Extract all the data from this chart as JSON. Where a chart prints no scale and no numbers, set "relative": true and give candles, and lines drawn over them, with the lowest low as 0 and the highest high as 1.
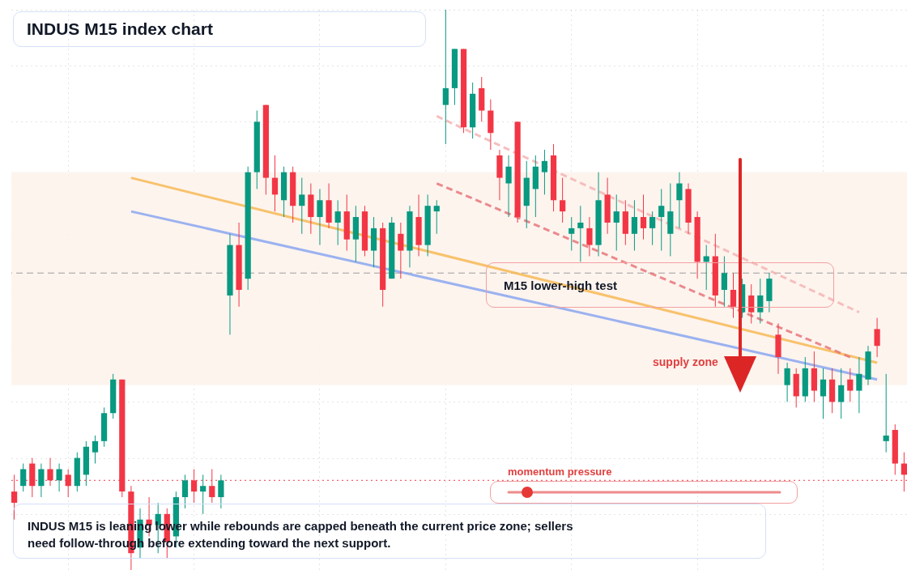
{
  "chart_data": {
    "type": "candlestick",
    "title": "INDUS M15 index chart",
    "relative": true,
    "grid": true,
    "categories": [
      null,
      null,
      null,
      null,
      null,
      null,
      null,
      null,
      null,
      null,
      null,
      null,
      null,
      null,
      null,
      null,
      null,
      null,
      null,
      null,
      null,
      null,
      null,
      null,
      null,
      null,
      null,
      null,
      null,
      null,
      null,
      null,
      null,
      null,
      null,
      null,
      null,
      null,
      null,
      null,
      null,
      null,
      null,
      null,
      null,
      null,
      null,
      null,
      null,
      null,
      null,
      null,
      null,
      null,
      null,
      null,
      null,
      null,
      null,
      null,
      null,
      null,
      null,
      null,
      null,
      null,
      null,
      null,
      null,
      null,
      null,
      null,
      null,
      null,
      null,
      null,
      null,
      null,
      null,
      null,
      null,
      null,
      null,
      null,
      null,
      null,
      null,
      null,
      null,
      null,
      null,
      null,
      null,
      null,
      null,
      null,
      null,
      null,
      null,
      null
    ],
    "ohlc": [
      [
        0.14,
        0.17,
        0.09,
        0.12
      ],
      [
        0.15,
        0.19,
        0.14,
        0.18
      ],
      [
        0.19,
        0.2,
        0.13,
        0.15
      ],
      [
        0.15,
        0.19,
        0.13,
        0.18
      ],
      [
        0.18,
        0.2,
        0.15,
        0.16
      ],
      [
        0.16,
        0.19,
        0.14,
        0.18
      ],
      [
        0.17,
        0.18,
        0.13,
        0.15
      ],
      [
        0.15,
        0.21,
        0.14,
        0.2
      ],
      [
        0.17,
        0.23,
        0.15,
        0.22
      ],
      [
        0.21,
        0.24,
        0.19,
        0.23
      ],
      [
        0.23,
        0.29,
        0.22,
        0.28
      ],
      [
        0.28,
        0.35,
        0.27,
        0.34
      ],
      [
        0.34,
        0.34,
        0.13,
        0.14
      ],
      [
        0.14,
        0.15,
        0.0,
        0.03
      ],
      [
        0.04,
        0.11,
        0.02,
        0.09
      ],
      [
        0.09,
        0.13,
        0.06,
        0.08
      ],
      [
        0.08,
        0.12,
        0.03,
        0.1
      ],
      [
        0.1,
        0.11,
        0.02,
        0.05
      ],
      [
        0.06,
        0.14,
        0.04,
        0.13
      ],
      [
        0.13,
        0.17,
        0.11,
        0.16
      ],
      [
        0.16,
        0.18,
        0.12,
        0.14
      ],
      [
        0.14,
        0.17,
        0.1,
        0.15
      ],
      [
        0.15,
        0.18,
        0.12,
        0.13
      ],
      [
        0.13,
        0.17,
        0.11,
        0.16
      ],
      [
        0.49,
        0.6,
        0.42,
        0.58
      ],
      [
        0.58,
        0.62,
        0.47,
        0.5
      ],
      [
        0.52,
        0.72,
        0.5,
        0.71
      ],
      [
        0.71,
        0.82,
        0.68,
        0.8
      ],
      [
        0.83,
        0.83,
        0.67,
        0.7
      ],
      [
        0.7,
        0.74,
        0.64,
        0.67
      ],
      [
        0.66,
        0.72,
        0.63,
        0.71
      ],
      [
        0.71,
        0.72,
        0.62,
        0.65
      ],
      [
        0.65,
        0.7,
        0.6,
        0.67
      ],
      [
        0.67,
        0.69,
        0.6,
        0.63
      ],
      [
        0.63,
        0.68,
        0.58,
        0.66
      ],
      [
        0.66,
        0.69,
        0.61,
        0.62
      ],
      [
        0.62,
        0.66,
        0.58,
        0.64
      ],
      [
        0.64,
        0.67,
        0.57,
        0.59
      ],
      [
        0.59,
        0.65,
        0.55,
        0.63
      ],
      [
        0.64,
        0.65,
        0.56,
        0.57
      ],
      [
        0.57,
        0.63,
        0.54,
        0.61
      ],
      [
        0.61,
        0.62,
        0.47,
        0.5
      ],
      [
        0.52,
        0.63,
        0.52,
        0.62
      ],
      [
        0.6,
        0.62,
        0.52,
        0.57
      ],
      [
        0.57,
        0.65,
        0.54,
        0.64
      ],
      [
        0.63,
        0.67,
        0.56,
        0.58
      ],
      [
        0.58,
        0.67,
        0.56,
        0.65
      ],
      [
        0.64,
        0.66,
        0.6,
        0.65
      ],
      [
        0.83,
        1.0,
        0.76,
        0.86
      ],
      [
        0.86,
        0.93,
        0.83,
        0.93
      ],
      [
        0.93,
        0.93,
        0.78,
        0.79
      ],
      [
        0.79,
        0.87,
        0.77,
        0.85
      ],
      [
        0.86,
        0.88,
        0.8,
        0.82
      ],
      [
        0.82,
        0.84,
        0.75,
        0.78
      ],
      [
        0.74,
        0.75,
        0.66,
        0.7
      ],
      [
        0.69,
        0.74,
        0.63,
        0.72
      ],
      [
        0.8,
        0.8,
        0.62,
        0.63
      ],
      [
        0.65,
        0.73,
        0.61,
        0.7
      ],
      [
        0.68,
        0.74,
        0.63,
        0.72
      ],
      [
        0.71,
        0.75,
        0.67,
        0.73
      ],
      [
        0.74,
        0.76,
        0.64,
        0.66
      ],
      [
        0.66,
        0.7,
        0.62,
        0.64
      ],
      [
        0.6,
        0.63,
        0.57,
        0.61
      ],
      [
        0.61,
        0.65,
        0.55,
        0.62
      ],
      [
        0.61,
        0.63,
        0.56,
        0.58
      ],
      [
        0.58,
        0.71,
        0.56,
        0.66
      ],
      [
        0.67,
        0.7,
        0.6,
        0.62
      ],
      [
        0.62,
        0.67,
        0.57,
        0.64
      ],
      [
        0.64,
        0.66,
        0.58,
        0.6
      ],
      [
        0.6,
        0.66,
        0.57,
        0.63
      ],
      [
        0.63,
        0.67,
        0.59,
        0.61
      ],
      [
        0.61,
        0.64,
        0.58,
        0.63
      ],
      [
        0.63,
        0.68,
        0.57,
        0.65
      ],
      [
        0.6,
        0.69,
        0.56,
        0.64
      ],
      [
        0.66,
        0.71,
        0.61,
        0.69
      ],
      [
        0.68,
        0.69,
        0.6,
        0.62
      ],
      [
        0.63,
        0.64,
        0.52,
        0.55
      ],
      [
        0.55,
        0.58,
        0.5,
        0.56
      ],
      [
        0.56,
        0.6,
        0.47,
        0.49
      ],
      [
        0.5,
        0.56,
        0.47,
        0.53
      ],
      [
        0.5,
        0.53,
        0.45,
        0.47
      ],
      [
        0.46,
        0.52,
        0.45,
        0.51
      ],
      [
        0.49,
        0.51,
        0.44,
        0.46
      ],
      [
        0.46,
        0.52,
        0.44,
        0.49
      ],
      [
        0.48,
        0.53,
        0.46,
        0.52
      ],
      [
        0.42,
        0.44,
        0.35,
        0.38
      ],
      [
        0.33,
        0.37,
        0.3,
        0.36
      ],
      [
        0.35,
        0.36,
        0.29,
        0.31
      ],
      [
        0.31,
        0.38,
        0.3,
        0.36
      ],
      [
        0.36,
        0.39,
        0.3,
        0.32
      ],
      [
        0.31,
        0.36,
        0.27,
        0.34
      ],
      [
        0.34,
        0.36,
        0.28,
        0.3
      ],
      [
        0.3,
        0.36,
        0.27,
        0.33
      ],
      [
        0.34,
        0.36,
        0.3,
        0.32
      ],
      [
        0.32,
        0.38,
        0.28,
        0.35
      ],
      [
        0.34,
        0.4,
        0.33,
        0.39
      ],
      [
        0.43,
        0.45,
        0.38,
        0.4
      ],
      [
        0.23,
        0.35,
        0.21,
        0.24
      ],
      [
        0.25,
        0.26,
        0.17,
        0.19
      ],
      [
        0.19,
        0.21,
        0.14,
        0.17
      ]
    ],
    "colors": [
      "#f23645",
      "#089981",
      "#f23645",
      "#089981",
      "#f23645",
      "#089981",
      "#f23645",
      "#089981",
      "#089981",
      "#089981",
      "#089981",
      "#089981",
      "#f23645",
      "#f23645",
      "#089981",
      "#f23645",
      "#089981",
      "#f23645",
      "#089981",
      "#089981",
      "#f23645",
      "#089981",
      "#f23645",
      "#089981",
      "#089981",
      "#f23645",
      "#089981",
      "#089981",
      "#f23645",
      "#f23645",
      "#089981",
      "#f23645",
      "#089981",
      "#f23645",
      "#089981",
      "#f23645",
      "#089981",
      "#f23645",
      "#089981",
      "#f23645",
      "#089981",
      "#f23645",
      "#089981",
      "#f23645",
      "#089981",
      "#f23645",
      "#089981",
      "#089981",
      "#089981",
      "#089981",
      "#f23645",
      "#089981",
      "#f23645",
      "#f23645",
      "#f23645",
      "#089981",
      "#f23645",
      "#089981",
      "#089981",
      "#089981",
      "#f23645",
      "#f23645",
      "#089981",
      "#089981",
      "#f23645",
      "#089981",
      "#f23645",
      "#089981",
      "#f23645",
      "#089981",
      "#f23645",
      "#089981",
      "#089981",
      "#089981",
      "#089981",
      "#f23645",
      "#f23645",
      "#089981",
      "#f23645",
      "#089981",
      "#f23645",
      "#089981",
      "#f23645",
      "#089981",
      "#089981",
      "#f23645",
      "#089981",
      "#f23645",
      "#089981",
      "#f23645",
      "#089981",
      "#f23645",
      "#089981",
      "#f23645",
      "#089981",
      "#089981",
      "#f23645",
      "#089981",
      "#f23645",
      "#f23645"
    ],
    "series": [
      {
        "type": "line",
        "color": "#f7b955",
        "line_style": "solid",
        "values": [
          null,
          null,
          null,
          null,
          null,
          null,
          null,
          null,
          null,
          null,
          null,
          null,
          null,
          0.7,
          null,
          null,
          null,
          null,
          null,
          null,
          null,
          null,
          null,
          null,
          null,
          null,
          null,
          null,
          null,
          null,
          null,
          null,
          null,
          null,
          null,
          null,
          null,
          null,
          null,
          null,
          null,
          null,
          null,
          null,
          null,
          null,
          null,
          null,
          null,
          null,
          null,
          null,
          null,
          null,
          null,
          null,
          null,
          null,
          null,
          null,
          null,
          null,
          null,
          null,
          null,
          null,
          null,
          null,
          null,
          null,
          null,
          null,
          null,
          null,
          null,
          null,
          null,
          null,
          null,
          null,
          null,
          null,
          null,
          null,
          null,
          null,
          null,
          null,
          null,
          null,
          null,
          null,
          null,
          null,
          null,
          null,
          0.37,
          null,
          null,
          null
        ]
      },
      {
        "type": "line",
        "color": "#8aa6f0",
        "line_style": "solid",
        "values": [
          null,
          null,
          null,
          null,
          null,
          null,
          null,
          null,
          null,
          null,
          null,
          null,
          null,
          0.64,
          null,
          null,
          null,
          null,
          null,
          null,
          null,
          null,
          null,
          null,
          null,
          null,
          null,
          null,
          null,
          null,
          null,
          null,
          null,
          null,
          null,
          null,
          null,
          null,
          null,
          null,
          null,
          null,
          null,
          null,
          null,
          null,
          null,
          null,
          null,
          null,
          null,
          null,
          null,
          null,
          null,
          null,
          null,
          null,
          null,
          null,
          null,
          null,
          null,
          null,
          null,
          null,
          null,
          null,
          null,
          null,
          null,
          null,
          null,
          null,
          null,
          null,
          null,
          null,
          null,
          null,
          null,
          null,
          null,
          null,
          null,
          null,
          null,
          null,
          null,
          null,
          null,
          null,
          null,
          null,
          null,
          null,
          0.34,
          null,
          null,
          null
        ]
      },
      {
        "type": "line",
        "color": "#f4b4b4",
        "line_style": "dashed",
        "values": [
          null,
          null,
          null,
          null,
          null,
          null,
          null,
          null,
          null,
          null,
          null,
          null,
          null,
          null,
          null,
          null,
          null,
          null,
          null,
          null,
          null,
          null,
          null,
          null,
          null,
          null,
          null,
          null,
          null,
          null,
          null,
          null,
          null,
          null,
          null,
          null,
          null,
          null,
          null,
          null,
          null,
          null,
          null,
          null,
          null,
          null,
          null,
          0.81,
          null,
          null,
          null,
          null,
          null,
          null,
          null,
          null,
          null,
          null,
          null,
          null,
          null,
          null,
          null,
          null,
          null,
          null,
          null,
          null,
          null,
          null,
          null,
          null,
          null,
          null,
          null,
          null,
          null,
          null,
          null,
          null,
          null,
          null,
          null,
          null,
          null,
          null,
          null,
          null,
          null,
          null,
          null,
          null,
          null,
          null,
          0.46,
          null,
          null,
          null,
          null,
          null
        ]
      },
      {
        "type": "line",
        "color": "#e8767a",
        "line_style": "dashed",
        "values": [
          null,
          null,
          null,
          null,
          null,
          null,
          null,
          null,
          null,
          null,
          null,
          null,
          null,
          null,
          null,
          null,
          null,
          null,
          null,
          null,
          null,
          null,
          null,
          null,
          null,
          null,
          null,
          null,
          null,
          null,
          null,
          null,
          null,
          null,
          null,
          null,
          null,
          null,
          null,
          null,
          null,
          null,
          null,
          null,
          null,
          null,
          null,
          0.69,
          null,
          null,
          null,
          null,
          null,
          null,
          null,
          null,
          null,
          null,
          null,
          null,
          null,
          null,
          null,
          null,
          null,
          null,
          null,
          null,
          null,
          null,
          null,
          null,
          null,
          null,
          null,
          null,
          null,
          null,
          null,
          null,
          null,
          null,
          null,
          null,
          null,
          null,
          null,
          null,
          null,
          null,
          null,
          null,
          null,
          0.38,
          null,
          null,
          null,
          null,
          null,
          null
        ]
      }
    ],
    "ref_lines": [
      {
        "axis": "y",
        "value": 0.53,
        "color": "#9e9e9e",
        "line_style": "dashed"
      },
      {
        "axis": "y",
        "value": 0.16,
        "color": "#f23645",
        "line_style": "dotted"
      }
    ],
    "bands": [
      {
        "axis": "y",
        "from": 0.33,
        "to": 0.71,
        "label": "supply zone",
        "color": "#fdf3ec"
      }
    ],
    "annotations": [
      "M15 lower-high test",
      "momentum pressure",
      "INDUS M15 is leaning lower while rebounds are capped beneath the current price zone; sellers need follow-through before extending toward the next support."
    ]
  }
}
